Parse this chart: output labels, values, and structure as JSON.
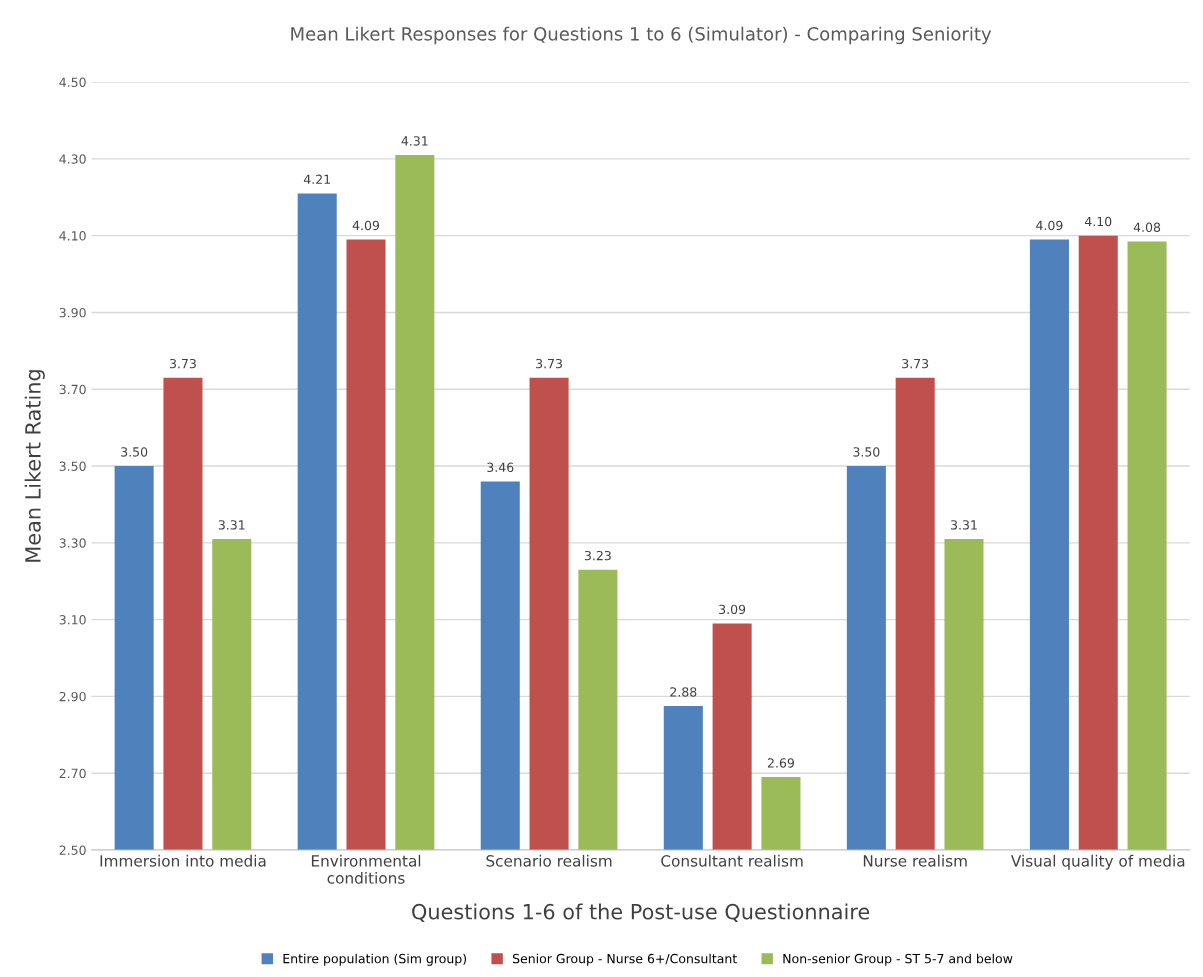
{
  "chart_data": {
    "type": "bar",
    "title": "Mean Likert Responses for Questions 1 to 6 (Simulator) - Comparing Seniority",
    "xlabel": "Questions 1-6 of the Post-use Questionnaire",
    "ylabel": "Mean Likert Rating",
    "categories": [
      "Immersion into media",
      "Environmental\nconditions",
      "Scenario realism",
      "Consultant realism",
      "Nurse realism",
      "Visual quality of media"
    ],
    "series": [
      {
        "name": "Entire population (Sim group)",
        "color": "#4f81bd",
        "values": [
          3.5,
          4.21,
          3.46,
          2.875,
          3.5,
          4.09
        ],
        "value_labels": [
          "3.50",
          "4.21",
          "3.46",
          "2.88",
          "3.50",
          "4.09"
        ]
      },
      {
        "name": "Senior Group - Nurse 6+/Consultant",
        "color": "#c0504d",
        "values": [
          3.73,
          4.09,
          3.73,
          3.09,
          3.73,
          4.1
        ],
        "value_labels": [
          "3.73",
          "4.09",
          "3.73",
          "3.09",
          "3.73",
          "4.10"
        ]
      },
      {
        "name": "Non-senior Group - ST 5-7 and below",
        "color": "#9bbb59",
        "values": [
          3.31,
          4.31,
          3.23,
          2.69,
          3.31,
          4.085
        ],
        "value_labels": [
          "3.31",
          "4.31",
          "3.23",
          "2.69",
          "3.31",
          "4.08"
        ]
      }
    ],
    "ylim": [
      2.5,
      4.5
    ],
    "yticks": [
      {
        "value": 2.5,
        "label": "2.50"
      },
      {
        "value": 2.7,
        "label": "2.70"
      },
      {
        "value": 2.9,
        "label": "2.90"
      },
      {
        "value": 3.1,
        "label": "3.10"
      },
      {
        "value": 3.3,
        "label": "3.30"
      },
      {
        "value": 3.5,
        "label": "3.50"
      },
      {
        "value": 3.7,
        "label": "3.70"
      },
      {
        "value": 3.9,
        "label": "3.90"
      },
      {
        "value": 4.1,
        "label": "4.10"
      },
      {
        "value": 4.3,
        "label": "4.30"
      },
      {
        "value": 4.5,
        "label": "4.50"
      }
    ],
    "grid": "y",
    "legend": "bottom"
  }
}
